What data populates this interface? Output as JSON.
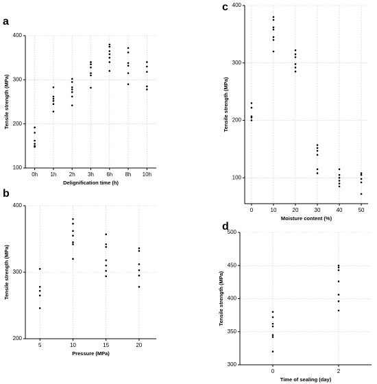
{
  "chart_data": [
    {
      "type": "strip",
      "label": "a",
      "xlabel": "Delignification time (h)",
      "ylabel": "Tensile strength (MPa)",
      "categories": [
        "0h",
        "1h",
        "2h",
        "3h",
        "6h",
        "8h",
        "10h"
      ],
      "values": [
        [
          192,
          180,
          162,
          155,
          150,
          148
        ],
        [
          283,
          262,
          257,
          252,
          245,
          228
        ],
        [
          302,
          295,
          283,
          278,
          272,
          262,
          242
        ],
        [
          340,
          335,
          328,
          315,
          310,
          282
        ],
        [
          380,
          375,
          365,
          358,
          350,
          340,
          320
        ],
        [
          372,
          362,
          338,
          332,
          315,
          290
        ],
        [
          340,
          330,
          318,
          285,
          278
        ]
      ],
      "color": "#000000",
      "ylim": [
        100,
        400
      ],
      "yticks": [
        100,
        200,
        300,
        400
      ],
      "grid": true
    },
    {
      "type": "scatter",
      "label": "b",
      "xlabel": "Pressure (MPa)",
      "ylabel": "Tensile strength (MPa)",
      "x": [
        5,
        5,
        5,
        5,
        5,
        10,
        10,
        10,
        10,
        10,
        10,
        10,
        15,
        15,
        15,
        15,
        15,
        15,
        15,
        20,
        20,
        20,
        20,
        20,
        20
      ],
      "values": [
        305,
        278,
        272,
        265,
        246,
        380,
        373,
        362,
        355,
        345,
        342,
        320,
        357,
        342,
        338,
        318,
        310,
        302,
        294,
        336,
        332,
        312,
        303,
        295,
        278
      ],
      "color": "#000000",
      "xlim": [
        2.8,
        22.6
      ],
      "xticks": [
        5,
        10,
        15,
        20
      ],
      "ylim": [
        200,
        400
      ],
      "yticks": [
        200,
        300,
        400
      ],
      "grid": true
    },
    {
      "type": "scatter",
      "label": "c",
      "xlabel": "Moisture content (%)",
      "ylabel": "Tensile strength (MPa)",
      "x": [
        0,
        0,
        0,
        0,
        0,
        10,
        10,
        10,
        10,
        10,
        10,
        10,
        20,
        20,
        20,
        20,
        20,
        20,
        30,
        30,
        30,
        30,
        30,
        30,
        40,
        40,
        40,
        40,
        40,
        40,
        50,
        50,
        50,
        50,
        50
      ],
      "values": [
        230,
        222,
        207,
        205,
        200,
        380,
        375,
        362,
        358,
        345,
        340,
        320,
        322,
        315,
        310,
        298,
        292,
        285,
        157,
        152,
        147,
        140,
        115,
        108,
        115,
        105,
        100,
        95,
        90,
        85,
        108,
        105,
        98,
        92,
        72
      ],
      "color": "#000000",
      "xlim": [
        -3.1,
        53.1
      ],
      "xticks": [
        0,
        10,
        20,
        30,
        40,
        50
      ],
      "ylim": [
        55,
        400
      ],
      "yticks": [
        100,
        200,
        300,
        400
      ],
      "grid": true
    },
    {
      "type": "scatter",
      "label": "d",
      "xlabel": "Time of sealing (day)",
      "ylabel": "Tensile strength (MPa)",
      "x": [
        0,
        0,
        0,
        0,
        0,
        0,
        0,
        2,
        2,
        2,
        2,
        2,
        2,
        2
      ],
      "values": [
        380,
        372,
        362,
        358,
        345,
        342,
        320,
        450,
        447,
        443,
        426,
        406,
        396,
        382
      ],
      "color": "#000000",
      "xlim": [
        -1,
        3
      ],
      "xticks": [
        0,
        2
      ],
      "ylim": [
        300,
        500
      ],
      "yticks": [
        300,
        350,
        400,
        450,
        500
      ],
      "grid": true
    }
  ]
}
